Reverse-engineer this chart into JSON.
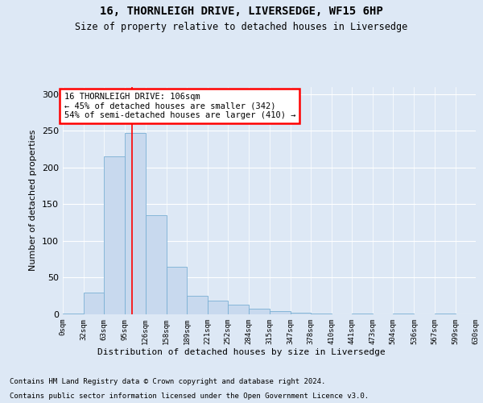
{
  "title1": "16, THORNLEIGH DRIVE, LIVERSEDGE, WF15 6HP",
  "title2": "Size of property relative to detached houses in Liversedge",
  "xlabel": "Distribution of detached houses by size in Liversedge",
  "ylabel": "Number of detached properties",
  "footer1": "Contains HM Land Registry data © Crown copyright and database right 2024.",
  "footer2": "Contains public sector information licensed under the Open Government Licence v3.0.",
  "annotation_line1": "16 THORNLEIGH DRIVE: 106sqm",
  "annotation_line2": "← 45% of detached houses are smaller (342)",
  "annotation_line3": "54% of semi-detached houses are larger (410) →",
  "bar_color": "#c8d9ee",
  "bar_edge_color": "#7aafd4",
  "red_line_x": 106,
  "bin_edges": [
    0,
    32,
    63,
    95,
    126,
    158,
    189,
    221,
    252,
    284,
    315,
    347,
    378,
    410,
    441,
    473,
    504,
    536,
    567,
    599,
    630
  ],
  "bar_heights": [
    1,
    30,
    215,
    247,
    135,
    65,
    25,
    19,
    13,
    8,
    4,
    2,
    1,
    0,
    1,
    0,
    1,
    0,
    1,
    0
  ],
  "tick_labels": [
    "0sqm",
    "32sqm",
    "63sqm",
    "95sqm",
    "126sqm",
    "158sqm",
    "189sqm",
    "221sqm",
    "252sqm",
    "284sqm",
    "315sqm",
    "347sqm",
    "378sqm",
    "410sqm",
    "441sqm",
    "473sqm",
    "504sqm",
    "536sqm",
    "567sqm",
    "599sqm",
    "630sqm"
  ],
  "ylim": [
    0,
    310
  ],
  "xlim": [
    0,
    630
  ],
  "background_color": "#dde8f5",
  "plot_bg_color": "#dde8f5",
  "yticks": [
    0,
    50,
    100,
    150,
    200,
    250,
    300
  ]
}
